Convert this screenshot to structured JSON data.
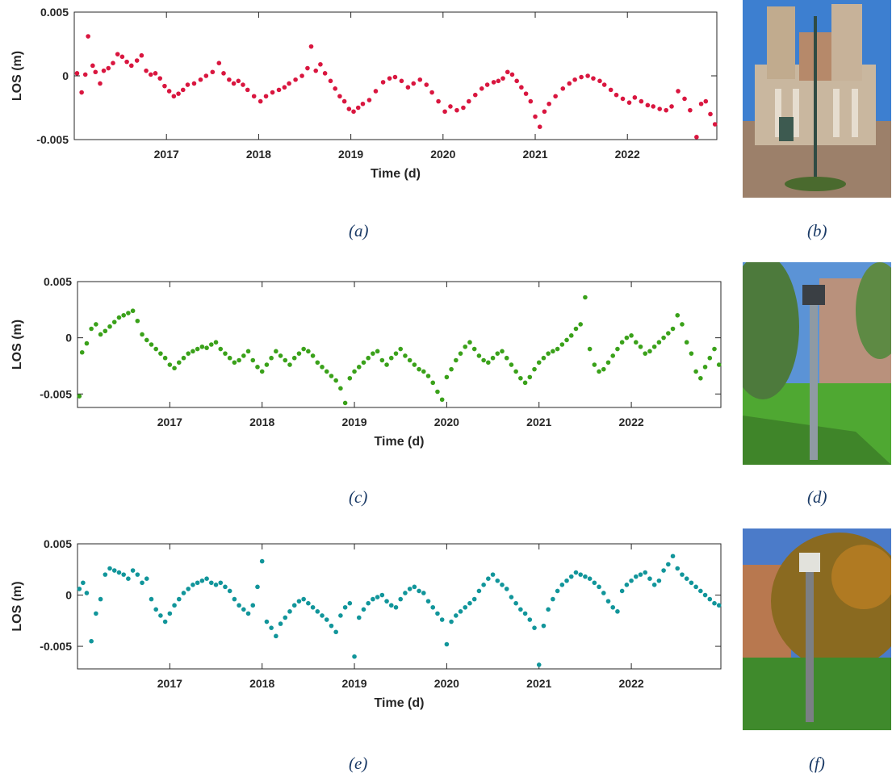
{
  "chart_data": [
    {
      "type": "scatter",
      "xlabel": "Time (d)",
      "ylabel": "LOS (m)",
      "xlim": [
        2016.0,
        2022.97
      ],
      "ylim": [
        -0.005,
        0.005
      ],
      "xticks": [
        2017,
        2018,
        2019,
        2020,
        2021,
        2022
      ],
      "xtick_labels": [
        "2017",
        "2018",
        "2019",
        "2020",
        "2021",
        "2022"
      ],
      "yticks": [
        0.005,
        0,
        -0.005
      ],
      "ytick_labels": [
        "0.005",
        "0",
        "-0.005"
      ],
      "color": "#d9163f",
      "grid": false,
      "caption": "(a)",
      "x": [
        2016.03,
        2016.08,
        2016.12,
        2016.15,
        2016.2,
        2016.23,
        2016.28,
        2016.32,
        2016.37,
        2016.42,
        2016.47,
        2016.52,
        2016.57,
        2016.62,
        2016.68,
        2016.73,
        2016.78,
        2016.83,
        2016.88,
        2016.93,
        2016.98,
        2017.03,
        2017.08,
        2017.13,
        2017.18,
        2017.23,
        2017.3,
        2017.37,
        2017.43,
        2017.5,
        2017.57,
        2017.62,
        2017.68,
        2017.73,
        2017.78,
        2017.83,
        2017.88,
        2017.95,
        2018.02,
        2018.08,
        2018.15,
        2018.22,
        2018.28,
        2018.33,
        2018.4,
        2018.47,
        2018.53,
        2018.57,
        2018.62,
        2018.67,
        2018.72,
        2018.78,
        2018.83,
        2018.88,
        2018.93,
        2018.98,
        2019.03,
        2019.08,
        2019.13,
        2019.2,
        2019.27,
        2019.35,
        2019.42,
        2019.48,
        2019.55,
        2019.62,
        2019.68,
        2019.75,
        2019.82,
        2019.88,
        2019.95,
        2020.02,
        2020.08,
        2020.15,
        2020.22,
        2020.28,
        2020.35,
        2020.42,
        2020.48,
        2020.55,
        2020.6,
        2020.65,
        2020.7,
        2020.75,
        2020.8,
        2020.85,
        2020.9,
        2020.95,
        2021.0,
        2021.05,
        2021.1,
        2021.15,
        2021.22,
        2021.3,
        2021.37,
        2021.43,
        2021.5,
        2021.57,
        2021.63,
        2021.7,
        2021.75,
        2021.82,
        2021.88,
        2021.95,
        2022.02,
        2022.08,
        2022.15,
        2022.22,
        2022.28,
        2022.35,
        2022.42,
        2022.48,
        2022.55,
        2022.62,
        2022.68,
        2022.75,
        2022.8,
        2022.85,
        2022.9,
        2022.95
      ],
      "y": [
        0.0002,
        -0.0013,
        0.0001,
        0.0031,
        0.0008,
        0.0003,
        -0.0006,
        0.0004,
        0.0006,
        0.001,
        0.0017,
        0.0015,
        0.0011,
        0.0008,
        0.0012,
        0.0016,
        0.0004,
        0.0001,
        0.0002,
        -0.0002,
        -0.0008,
        -0.0012,
        -0.0016,
        -0.0014,
        -0.0011,
        -0.0007,
        -0.0006,
        -0.0003,
        0.0,
        0.0003,
        0.001,
        0.0002,
        -0.0003,
        -0.0006,
        -0.0004,
        -0.0007,
        -0.0011,
        -0.0016,
        -0.002,
        -0.0016,
        -0.0013,
        -0.0011,
        -0.0009,
        -0.0006,
        -0.0003,
        0.0,
        0.0006,
        0.0023,
        0.0004,
        0.0009,
        0.0002,
        -0.0004,
        -0.001,
        -0.0016,
        -0.002,
        -0.0026,
        -0.0028,
        -0.0025,
        -0.0022,
        -0.0019,
        -0.0012,
        -0.0005,
        -0.0002,
        -0.0001,
        -0.0004,
        -0.0009,
        -0.0006,
        -0.0003,
        -0.0007,
        -0.0013,
        -0.002,
        -0.0028,
        -0.0024,
        -0.0027,
        -0.0025,
        -0.002,
        -0.0015,
        -0.001,
        -0.0007,
        -0.0005,
        -0.0004,
        -0.0002,
        0.0003,
        0.0001,
        -0.0004,
        -0.0009,
        -0.0014,
        -0.002,
        -0.0032,
        -0.004,
        -0.0028,
        -0.0022,
        -0.0016,
        -0.001,
        -0.0006,
        -0.0003,
        -0.0001,
        0.0,
        -0.0002,
        -0.0004,
        -0.0007,
        -0.0011,
        -0.0015,
        -0.0018,
        -0.0021,
        -0.0017,
        -0.002,
        -0.0023,
        -0.0024,
        -0.0026,
        -0.0027,
        -0.0024,
        -0.0012,
        -0.0018,
        -0.0027,
        -0.0048,
        -0.0022,
        -0.002,
        -0.003,
        -0.0038
      ]
    },
    {
      "type": "scatter",
      "xlabel": "Time (d)",
      "ylabel": "LOS (m)",
      "xlim": [
        2016.0,
        2022.97
      ],
      "ylim": [
        -0.0062,
        0.005
      ],
      "xticks": [
        2017,
        2018,
        2019,
        2020,
        2021,
        2022
      ],
      "xtick_labels": [
        "2017",
        "2018",
        "2019",
        "2020",
        "2021",
        "2022"
      ],
      "yticks": [
        0.005,
        0,
        -0.005
      ],
      "ytick_labels": [
        "0.005",
        "0",
        "-0.005"
      ],
      "color": "#3aa11a",
      "grid": false,
      "caption": "(c)",
      "x": [
        2016.02,
        2016.05,
        2016.1,
        2016.15,
        2016.2,
        2016.25,
        2016.3,
        2016.35,
        2016.4,
        2016.45,
        2016.5,
        2016.55,
        2016.6,
        2016.65,
        2016.7,
        2016.75,
        2016.8,
        2016.85,
        2016.9,
        2016.95,
        2017.0,
        2017.05,
        2017.1,
        2017.15,
        2017.2,
        2017.25,
        2017.3,
        2017.35,
        2017.4,
        2017.45,
        2017.5,
        2017.55,
        2017.6,
        2017.65,
        2017.7,
        2017.75,
        2017.8,
        2017.85,
        2017.9,
        2017.95,
        2018.0,
        2018.05,
        2018.1,
        2018.15,
        2018.2,
        2018.25,
        2018.3,
        2018.35,
        2018.4,
        2018.45,
        2018.5,
        2018.55,
        2018.6,
        2018.65,
        2018.7,
        2018.75,
        2018.8,
        2018.85,
        2018.9,
        2018.95,
        2019.0,
        2019.05,
        2019.1,
        2019.15,
        2019.2,
        2019.25,
        2019.3,
        2019.35,
        2019.4,
        2019.45,
        2019.5,
        2019.55,
        2019.6,
        2019.65,
        2019.7,
        2019.75,
        2019.8,
        2019.85,
        2019.9,
        2019.95,
        2020.0,
        2020.05,
        2020.1,
        2020.15,
        2020.2,
        2020.25,
        2020.3,
        2020.35,
        2020.4,
        2020.45,
        2020.5,
        2020.55,
        2020.6,
        2020.65,
        2020.7,
        2020.75,
        2020.8,
        2020.85,
        2020.9,
        2020.95,
        2021.0,
        2021.05,
        2021.1,
        2021.15,
        2021.2,
        2021.25,
        2021.3,
        2021.35,
        2021.4,
        2021.45,
        2021.5,
        2021.55,
        2021.6,
        2021.65,
        2021.7,
        2021.75,
        2021.8,
        2021.85,
        2021.9,
        2021.95,
        2022.0,
        2022.05,
        2022.1,
        2022.15,
        2022.2,
        2022.25,
        2022.3,
        2022.35,
        2022.4,
        2022.45,
        2022.5,
        2022.55,
        2022.6,
        2022.65,
        2022.7,
        2022.75,
        2022.8,
        2022.85,
        2022.9,
        2022.95
      ],
      "y": [
        -0.0052,
        -0.0013,
        -0.0005,
        0.0008,
        0.0012,
        0.0003,
        0.0006,
        0.001,
        0.0014,
        0.0018,
        0.002,
        0.0022,
        0.0024,
        0.0015,
        0.0003,
        -0.0002,
        -0.0006,
        -0.001,
        -0.0014,
        -0.0018,
        -0.0024,
        -0.0027,
        -0.0022,
        -0.0018,
        -0.0014,
        -0.0012,
        -0.001,
        -0.0008,
        -0.0009,
        -0.0006,
        -0.0004,
        -0.001,
        -0.0014,
        -0.0018,
        -0.0022,
        -0.002,
        -0.0016,
        -0.0012,
        -0.002,
        -0.0026,
        -0.003,
        -0.0024,
        -0.0018,
        -0.0012,
        -0.0016,
        -0.002,
        -0.0024,
        -0.0018,
        -0.0014,
        -0.001,
        -0.0012,
        -0.0016,
        -0.0022,
        -0.0026,
        -0.003,
        -0.0034,
        -0.0038,
        -0.0045,
        -0.0058,
        -0.0036,
        -0.003,
        -0.0026,
        -0.0022,
        -0.0018,
        -0.0014,
        -0.0012,
        -0.002,
        -0.0024,
        -0.0018,
        -0.0014,
        -0.001,
        -0.0016,
        -0.002,
        -0.0024,
        -0.0028,
        -0.003,
        -0.0034,
        -0.004,
        -0.0048,
        -0.0055,
        -0.0035,
        -0.0028,
        -0.002,
        -0.0014,
        -0.0008,
        -0.0004,
        -0.001,
        -0.0016,
        -0.002,
        -0.0022,
        -0.0018,
        -0.0014,
        -0.0012,
        -0.0018,
        -0.0024,
        -0.003,
        -0.0036,
        -0.004,
        -0.0035,
        -0.0028,
        -0.0022,
        -0.0018,
        -0.0014,
        -0.0012,
        -0.001,
        -0.0006,
        -0.0002,
        0.0002,
        0.0008,
        0.0012,
        0.0036,
        -0.001,
        -0.0024,
        -0.003,
        -0.0028,
        -0.0022,
        -0.0016,
        -0.001,
        -0.0004,
        0.0,
        0.0002,
        -0.0004,
        -0.0008,
        -0.0014,
        -0.0012,
        -0.0008,
        -0.0004,
        0.0,
        0.0004,
        0.0008,
        0.002,
        0.0012,
        -0.0004,
        -0.0014,
        -0.003,
        -0.0036,
        -0.0026,
        -0.0018,
        -0.001,
        -0.0024
      ]
    },
    {
      "type": "scatter",
      "xlabel": "Time (d)",
      "ylabel": "LOS (m)",
      "xlim": [
        2016.0,
        2022.97
      ],
      "ylim": [
        -0.0072,
        0.005
      ],
      "xticks": [
        2017,
        2018,
        2019,
        2020,
        2021,
        2022
      ],
      "xtick_labels": [
        "2017",
        "2018",
        "2019",
        "2020",
        "2021",
        "2022"
      ],
      "yticks": [
        0.005,
        0,
        -0.005
      ],
      "ytick_labels": [
        "0.005",
        "0",
        "-0.005"
      ],
      "color": "#11959a",
      "grid": false,
      "caption": "(e)",
      "x": [
        2016.02,
        2016.06,
        2016.1,
        2016.15,
        2016.2,
        2016.25,
        2016.3,
        2016.35,
        2016.4,
        2016.45,
        2016.5,
        2016.55,
        2016.6,
        2016.65,
        2016.7,
        2016.75,
        2016.8,
        2016.85,
        2016.9,
        2016.95,
        2017.0,
        2017.05,
        2017.1,
        2017.15,
        2017.2,
        2017.25,
        2017.3,
        2017.35,
        2017.4,
        2017.45,
        2017.5,
        2017.55,
        2017.6,
        2017.65,
        2017.7,
        2017.75,
        2017.8,
        2017.85,
        2017.9,
        2017.95,
        2018.0,
        2018.05,
        2018.1,
        2018.15,
        2018.2,
        2018.25,
        2018.3,
        2018.35,
        2018.4,
        2018.45,
        2018.5,
        2018.55,
        2018.6,
        2018.65,
        2018.7,
        2018.75,
        2018.8,
        2018.85,
        2018.9,
        2018.95,
        2019.0,
        2019.05,
        2019.1,
        2019.15,
        2019.2,
        2019.25,
        2019.3,
        2019.35,
        2019.4,
        2019.45,
        2019.5,
        2019.55,
        2019.6,
        2019.65,
        2019.7,
        2019.75,
        2019.8,
        2019.85,
        2019.9,
        2019.95,
        2020.0,
        2020.05,
        2020.1,
        2020.15,
        2020.2,
        2020.25,
        2020.3,
        2020.35,
        2020.4,
        2020.45,
        2020.5,
        2020.55,
        2020.6,
        2020.65,
        2020.7,
        2020.75,
        2020.8,
        2020.85,
        2020.9,
        2020.95,
        2021.0,
        2021.05,
        2021.1,
        2021.15,
        2021.2,
        2021.25,
        2021.3,
        2021.35,
        2021.4,
        2021.45,
        2021.5,
        2021.55,
        2021.6,
        2021.65,
        2021.7,
        2021.75,
        2021.8,
        2021.85,
        2021.9,
        2021.95,
        2022.0,
        2022.05,
        2022.1,
        2022.15,
        2022.2,
        2022.25,
        2022.3,
        2022.35,
        2022.4,
        2022.45,
        2022.5,
        2022.55,
        2022.6,
        2022.65,
        2022.7,
        2022.75,
        2022.8,
        2022.85,
        2022.9,
        2022.95
      ],
      "y": [
        0.0006,
        0.0012,
        0.0002,
        -0.0045,
        -0.0018,
        -0.0004,
        0.002,
        0.0026,
        0.0024,
        0.0022,
        0.002,
        0.0016,
        0.0024,
        0.002,
        0.0012,
        0.0016,
        -0.0004,
        -0.0014,
        -0.002,
        -0.0026,
        -0.0018,
        -0.001,
        -0.0004,
        0.0002,
        0.0006,
        0.001,
        0.0012,
        0.0014,
        0.0016,
        0.0012,
        0.001,
        0.0012,
        0.0008,
        0.0004,
        -0.0004,
        -0.001,
        -0.0014,
        -0.0018,
        -0.001,
        0.0008,
        0.0033,
        -0.0026,
        -0.0032,
        -0.004,
        -0.0028,
        -0.0022,
        -0.0016,
        -0.001,
        -0.0006,
        -0.0004,
        -0.0008,
        -0.0012,
        -0.0016,
        -0.002,
        -0.0024,
        -0.003,
        -0.0036,
        -0.002,
        -0.0012,
        -0.0008,
        -0.006,
        -0.0022,
        -0.0014,
        -0.0008,
        -0.0004,
        -0.0002,
        0.0,
        -0.0006,
        -0.001,
        -0.0012,
        -0.0004,
        0.0002,
        0.0006,
        0.0008,
        0.0004,
        0.0002,
        -0.0006,
        -0.0012,
        -0.0018,
        -0.0024,
        -0.0048,
        -0.0026,
        -0.002,
        -0.0016,
        -0.0012,
        -0.0008,
        -0.0004,
        0.0004,
        0.001,
        0.0016,
        0.002,
        0.0014,
        0.001,
        0.0006,
        -0.0002,
        -0.0008,
        -0.0014,
        -0.0018,
        -0.0024,
        -0.0032,
        -0.0068,
        -0.003,
        -0.0014,
        -0.0004,
        0.0004,
        0.001,
        0.0014,
        0.0018,
        0.0022,
        0.002,
        0.0018,
        0.0016,
        0.0012,
        0.0008,
        0.0002,
        -0.0006,
        -0.0012,
        -0.0016,
        0.0004,
        0.001,
        0.0014,
        0.0018,
        0.002,
        0.0022,
        0.0016,
        0.001,
        0.0014,
        0.0024,
        0.003,
        0.0038,
        0.0026,
        0.002,
        0.0016,
        0.0012,
        0.0008,
        0.0004,
        0.0,
        -0.0004,
        -0.0008,
        -0.001
      ]
    }
  ],
  "photos": [
    {
      "caption": "(b)",
      "colors": {
        "sky": "#3d7fd0",
        "building": "#c9b79f",
        "ground": "#9c806a"
      }
    },
    {
      "caption": "(d)",
      "colors": {
        "sky": "#5b93d6",
        "tree": "#4d7a3c",
        "grass": "#4fa832"
      }
    },
    {
      "caption": "(f)",
      "colors": {
        "sky": "#4b7bc9",
        "tree": "#8a6a20",
        "grass": "#3f8a2c"
      }
    }
  ]
}
